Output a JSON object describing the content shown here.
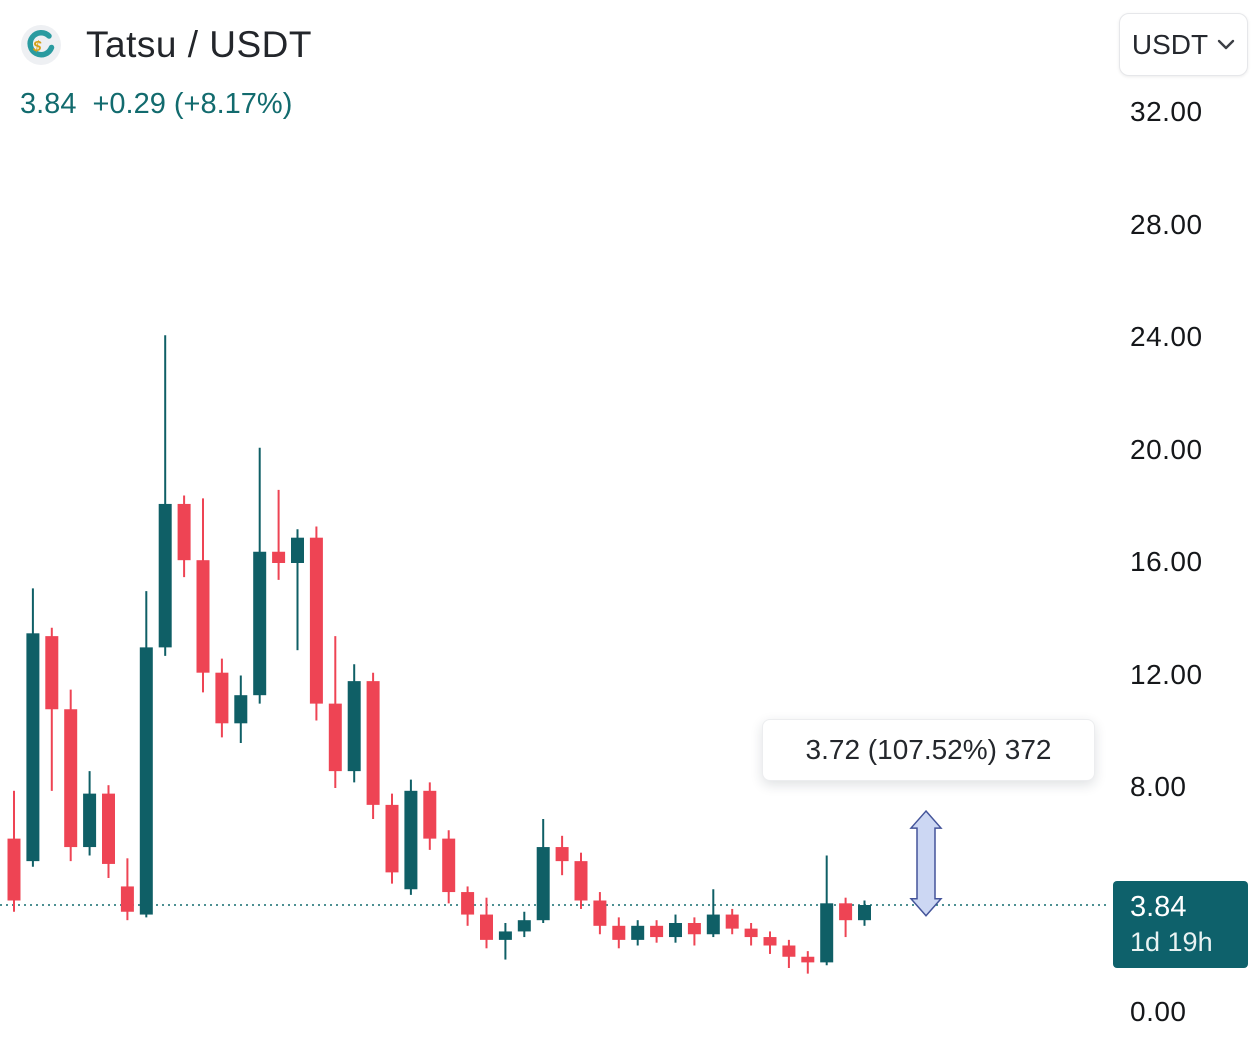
{
  "header": {
    "title": "Tatsu / USDT",
    "price": "3.84",
    "change": "+0.29 (+8.17%)"
  },
  "quote_selector": {
    "label": "USDT"
  },
  "tooltip": {
    "text": "3.72 (107.52%) 372"
  },
  "price_badge": {
    "price": "3.84",
    "countdown": "1d 19h"
  },
  "colors": {
    "up": "#0f5f66",
    "down": "#ee4454",
    "accent_text": "#126b6e",
    "badge_bg": "#0e616b",
    "arrow_fill": "#ccd7f3",
    "arrow_stroke": "#44549a",
    "axis_text": "#15171a"
  },
  "chart_data": {
    "type": "candlestick",
    "title": "Tatsu / USDT",
    "quote": "USDT",
    "current_price": 3.84,
    "price_line": 3.84,
    "ylim": [
      0,
      36
    ],
    "grid": false,
    "legend_position": "none",
    "y_ticks": [
      {
        "value": 32,
        "label": "32.00"
      },
      {
        "value": 28,
        "label": "28.00"
      },
      {
        "value": 24,
        "label": "24.00"
      },
      {
        "value": 20,
        "label": "20.00"
      },
      {
        "value": 16,
        "label": "16.00"
      },
      {
        "value": 12,
        "label": "12.00"
      },
      {
        "value": 8,
        "label": "8.00"
      },
      {
        "value": 0,
        "label": "0.00"
      }
    ],
    "measure_tool": {
      "change": "3.72",
      "percent": "107.52%",
      "bars": "372",
      "from_price": 3.46,
      "to_price": 7.18
    },
    "candles": [
      {
        "o": 6.2,
        "h": 7.9,
        "l": 3.6,
        "c": 4.0
      },
      {
        "o": 5.4,
        "h": 15.1,
        "l": 5.2,
        "c": 13.5
      },
      {
        "o": 13.4,
        "h": 13.7,
        "l": 7.9,
        "c": 10.8
      },
      {
        "o": 10.8,
        "h": 11.5,
        "l": 5.4,
        "c": 5.9
      },
      {
        "o": 5.9,
        "h": 8.6,
        "l": 5.6,
        "c": 7.8
      },
      {
        "o": 7.8,
        "h": 8.1,
        "l": 4.8,
        "c": 5.3
      },
      {
        "o": 4.5,
        "h": 5.5,
        "l": 3.3,
        "c": 3.6
      },
      {
        "o": 3.5,
        "h": 15.0,
        "l": 3.4,
        "c": 13.0
      },
      {
        "o": 13.0,
        "h": 24.1,
        "l": 12.7,
        "c": 18.1
      },
      {
        "o": 18.1,
        "h": 18.4,
        "l": 15.5,
        "c": 16.1
      },
      {
        "o": 16.1,
        "h": 18.3,
        "l": 11.4,
        "c": 12.1
      },
      {
        "o": 12.1,
        "h": 12.6,
        "l": 9.8,
        "c": 10.3
      },
      {
        "o": 10.3,
        "h": 12.0,
        "l": 9.6,
        "c": 11.3
      },
      {
        "o": 11.3,
        "h": 20.1,
        "l": 11.0,
        "c": 16.4
      },
      {
        "o": 16.4,
        "h": 18.6,
        "l": 15.4,
        "c": 16.0
      },
      {
        "o": 16.0,
        "h": 17.2,
        "l": 12.9,
        "c": 16.9
      },
      {
        "o": 16.9,
        "h": 17.3,
        "l": 10.4,
        "c": 11.0
      },
      {
        "o": 11.0,
        "h": 13.4,
        "l": 8.0,
        "c": 8.6
      },
      {
        "o": 8.6,
        "h": 12.4,
        "l": 8.2,
        "c": 11.8
      },
      {
        "o": 11.8,
        "h": 12.1,
        "l": 6.9,
        "c": 7.4
      },
      {
        "o": 7.4,
        "h": 7.8,
        "l": 4.6,
        "c": 5.0
      },
      {
        "o": 4.4,
        "h": 8.3,
        "l": 4.2,
        "c": 7.9
      },
      {
        "o": 7.9,
        "h": 8.2,
        "l": 5.8,
        "c": 6.2
      },
      {
        "o": 6.2,
        "h": 6.5,
        "l": 3.9,
        "c": 4.3
      },
      {
        "o": 4.3,
        "h": 4.5,
        "l": 3.1,
        "c": 3.5
      },
      {
        "o": 3.5,
        "h": 4.1,
        "l": 2.3,
        "c": 2.6
      },
      {
        "o": 2.6,
        "h": 3.2,
        "l": 1.9,
        "c": 2.9
      },
      {
        "o": 2.9,
        "h": 3.6,
        "l": 2.7,
        "c": 3.3
      },
      {
        "o": 3.3,
        "h": 6.9,
        "l": 3.2,
        "c": 5.9
      },
      {
        "o": 5.9,
        "h": 6.3,
        "l": 4.9,
        "c": 5.4
      },
      {
        "o": 5.4,
        "h": 5.7,
        "l": 3.7,
        "c": 4.0
      },
      {
        "o": 4.0,
        "h": 4.3,
        "l": 2.8,
        "c": 3.1
      },
      {
        "o": 3.1,
        "h": 3.4,
        "l": 2.3,
        "c": 2.6
      },
      {
        "o": 2.6,
        "h": 3.3,
        "l": 2.4,
        "c": 3.1
      },
      {
        "o": 3.1,
        "h": 3.3,
        "l": 2.5,
        "c": 2.7
      },
      {
        "o": 2.7,
        "h": 3.5,
        "l": 2.5,
        "c": 3.2
      },
      {
        "o": 3.2,
        "h": 3.4,
        "l": 2.4,
        "c": 2.8
      },
      {
        "o": 2.8,
        "h": 4.4,
        "l": 2.7,
        "c": 3.5
      },
      {
        "o": 3.5,
        "h": 3.7,
        "l": 2.8,
        "c": 3.0
      },
      {
        "o": 3.0,
        "h": 3.2,
        "l": 2.4,
        "c": 2.7
      },
      {
        "o": 2.7,
        "h": 2.9,
        "l": 2.1,
        "c": 2.4
      },
      {
        "o": 2.4,
        "h": 2.6,
        "l": 1.6,
        "c": 2.0
      },
      {
        "o": 2.0,
        "h": 2.2,
        "l": 1.4,
        "c": 1.8
      },
      {
        "o": 1.8,
        "h": 5.6,
        "l": 1.7,
        "c": 3.9
      },
      {
        "o": 3.9,
        "h": 4.1,
        "l": 2.7,
        "c": 3.3
      },
      {
        "o": 3.3,
        "h": 4.0,
        "l": 3.1,
        "c": 3.84
      }
    ]
  }
}
